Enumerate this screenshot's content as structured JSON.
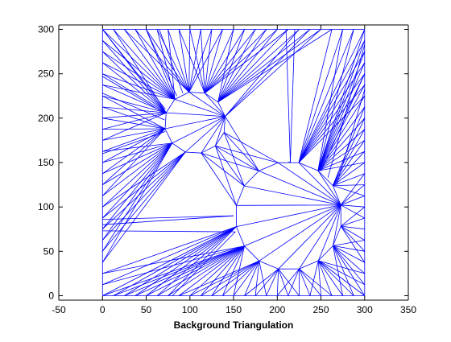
{
  "chart_data": {
    "type": "mesh",
    "title": "",
    "xlabel": "Background Triangulation",
    "ylabel": "",
    "xlim": [
      -50,
      350
    ],
    "ylim": [
      -5,
      305
    ],
    "xticks": [
      -50,
      0,
      50,
      100,
      150,
      200,
      250,
      300,
      350
    ],
    "yticks": [
      0,
      50,
      100,
      150,
      200,
      250,
      300
    ],
    "grid": false,
    "line_color": "#0000ff",
    "domain": {
      "xmin": 0,
      "xmax": 300,
      "ymin": 0,
      "ymax": 300
    },
    "holes": [
      {
        "cx": 106,
        "cy": 195,
        "r": 35,
        "segments": 12
      },
      {
        "cx": 213,
        "cy": 90,
        "r": 61,
        "segments": 16
      }
    ],
    "edges": [
      [
        [
          0,
          80
        ],
        [
          150,
          90
        ]
      ],
      [
        [
          0,
          86
        ],
        [
          150,
          90
        ]
      ],
      [
        [
          80,
          0
        ],
        [
          152,
          72
        ]
      ],
      [
        [
          0,
          73
        ],
        [
          152,
          72
        ]
      ],
      [
        [
          215,
          150
        ],
        [
          213,
          151
        ]
      ],
      [
        [
          210,
          300
        ],
        [
          215,
          150
        ]
      ],
      [
        [
          220,
          300
        ],
        [
          215,
          150
        ]
      ],
      [
        [
          300,
          283
        ],
        [
          258,
          133
        ]
      ],
      [
        [
          300,
          250
        ],
        [
          250,
          140
        ]
      ],
      [
        [
          300,
          232
        ],
        [
          268,
          125
        ]
      ],
      [
        [
          50,
          300
        ],
        [
          85,
          225
        ]
      ],
      [
        [
          65,
          300
        ],
        [
          92,
          228
        ]
      ],
      [
        [
          0,
          300
        ],
        [
          72,
          210
        ]
      ],
      [
        [
          0,
          247
        ],
        [
          72,
          205
        ]
      ],
      [
        [
          0,
          228
        ],
        [
          71,
          198
        ]
      ],
      [
        [
          0,
          160
        ],
        [
          72,
          185
        ]
      ]
    ]
  }
}
